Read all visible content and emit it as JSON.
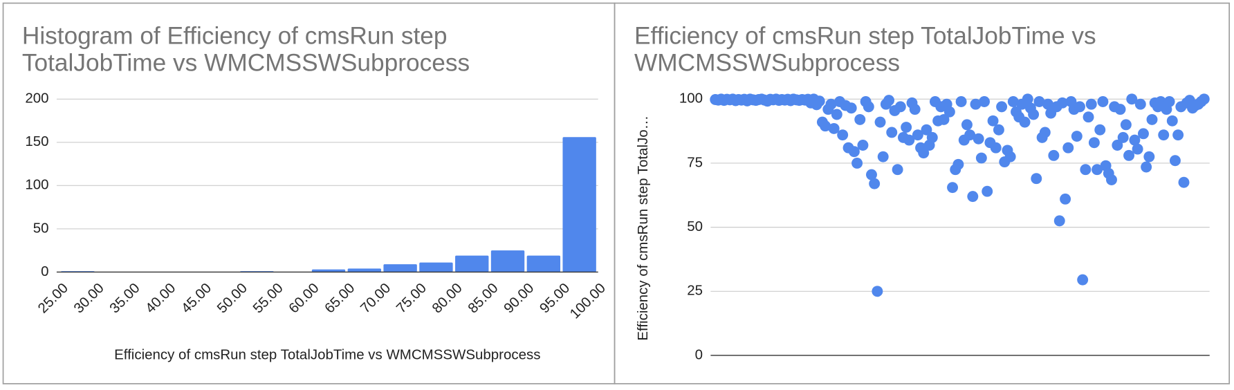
{
  "chart_data": [
    {
      "type": "histogram",
      "title": [
        "Histogram of Efficiency of cmsRun step",
        "TotalJobTime vs WMCMSSWSubprocess"
      ],
      "x_label": "Efficiency of cmsRun step TotalJobTime vs WMCMSSWSubprocess",
      "bins": [
        25,
        30,
        35,
        40,
        45,
        50,
        55,
        60,
        65,
        70,
        75,
        80,
        85,
        90,
        95,
        100
      ],
      "values": [
        1,
        0,
        0,
        0,
        0,
        1,
        0,
        3,
        4,
        9,
        11,
        19,
        25,
        19,
        156
      ],
      "color": "#5087ec",
      "xlim": [
        25,
        100
      ],
      "xticks": [
        {
          "value": 25,
          "label": "25.00"
        },
        {
          "value": 30,
          "label": "30.00"
        },
        {
          "value": 35,
          "label": "35.00"
        },
        {
          "value": 40,
          "label": "40.00"
        },
        {
          "value": 45,
          "label": "45.00"
        },
        {
          "value": 50,
          "label": "50.00"
        },
        {
          "value": 55,
          "label": "55.00"
        },
        {
          "value": 60,
          "label": "60.00"
        },
        {
          "value": 65,
          "label": "65.00"
        },
        {
          "value": 70,
          "label": "70.00"
        },
        {
          "value": 75,
          "label": "75.00"
        },
        {
          "value": 80,
          "label": "80.00"
        },
        {
          "value": 85,
          "label": "85.00"
        },
        {
          "value": 90,
          "label": "90.00"
        },
        {
          "value": 95,
          "label": "95.00"
        },
        {
          "value": 100,
          "label": "100.00"
        }
      ],
      "ylim": [
        0,
        200
      ],
      "yticks": [
        0,
        50,
        100,
        150,
        200
      ],
      "grid": true
    },
    {
      "type": "scatter",
      "title": [
        "Efficiency of cmsRun step TotalJobTime vs",
        "WMCMSSWSubprocess"
      ],
      "y_label": "Efficiency of cmsRun step TotalJo…",
      "values": [
        99.8,
        99.6,
        100,
        99.5,
        99.9,
        99.7,
        100,
        99.4,
        99.8,
        99.6,
        99.9,
        99.3,
        100,
        99.7,
        99.5,
        99.8,
        100,
        99.6,
        99.2,
        99.9,
        99.7,
        100,
        99.5,
        99.8,
        99.6,
        99.9,
        99.4,
        100,
        99.7,
        99.5,
        99.8,
        99.6,
        99.9,
        98.5,
        100,
        97.8,
        99.2,
        91,
        89.5,
        96,
        98,
        88.5,
        94,
        99,
        86,
        97.5,
        81,
        96.5,
        79.5,
        75,
        92,
        82,
        99,
        97,
        70.5,
        67,
        25,
        91,
        77.5,
        98,
        99.5,
        87,
        95.5,
        72.5,
        97,
        85,
        89,
        84,
        98.5,
        96,
        86,
        81,
        79,
        88,
        82,
        85,
        99,
        91.5,
        97,
        92,
        98,
        95,
        65.5,
        72.5,
        74.5,
        99,
        84,
        90,
        86,
        62,
        98,
        84.5,
        77,
        99,
        64,
        83,
        91.5,
        81,
        88,
        97,
        75.5,
        80,
        77.5,
        99,
        95,
        93,
        98,
        91,
        100,
        96.5,
        94,
        69,
        99,
        85,
        87,
        98,
        94.5,
        78,
        97,
        52.5,
        98.5,
        61,
        81,
        99,
        96,
        85.5,
        97,
        29.5,
        72.5,
        93,
        98,
        83,
        72.5,
        88,
        99,
        74,
        71,
        68.5,
        97,
        82,
        96,
        85,
        90,
        78,
        100,
        84,
        80.5,
        98,
        86.5,
        73.5,
        77.5,
        92,
        98.5,
        97,
        99,
        86,
        96,
        99,
        91.5,
        76,
        86,
        97,
        67.5,
        98.5,
        99.5,
        96.5,
        97.5,
        98,
        99,
        100
      ],
      "color": "#5087ec",
      "ylim": [
        0,
        100
      ],
      "yticks": [
        0,
        25,
        50,
        75,
        100
      ],
      "grid": true
    }
  ]
}
